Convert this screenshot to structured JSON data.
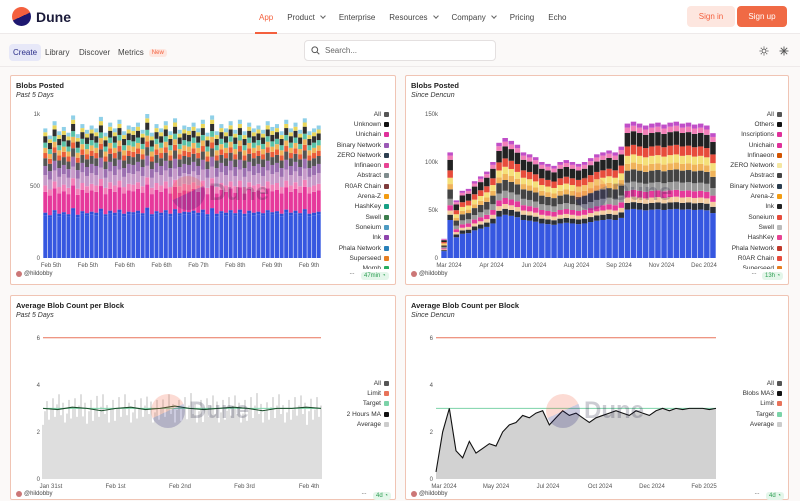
{
  "header": {
    "logo_text": "Dune",
    "nav": [
      {
        "label": "App",
        "active": true,
        "dropdown": false
      },
      {
        "label": "Product",
        "dropdown": true
      },
      {
        "label": "Enterprise",
        "dropdown": false
      },
      {
        "label": "Resources",
        "dropdown": true
      },
      {
        "label": "Company",
        "dropdown": true
      },
      {
        "label": "Pricing",
        "dropdown": false
      },
      {
        "label": "Echo",
        "dropdown": false
      }
    ],
    "signin_label": "Sign in",
    "signup_label": "Sign up"
  },
  "subnav": {
    "items": [
      "Create",
      "Library",
      "Discover",
      "Metrics"
    ],
    "new_badge": "New",
    "search_placeholder": "Search..."
  },
  "colors": {
    "accent": "#f4603e",
    "border": "#f0c4b4"
  },
  "watermark": "Dune",
  "cards": [
    {
      "title": "Blobs Posted",
      "subtitle": "Past 5 Days",
      "author": "@hildobby",
      "freshness": "47min",
      "y_ticks": [
        "1k",
        "500",
        "0"
      ],
      "x_ticks": [
        "Feb 5th",
        "Feb 5th",
        "Feb 6th",
        "Feb 6th",
        "Feb 7th",
        "Feb 8th",
        "Feb 9th",
        "Feb 9th"
      ],
      "legend": [
        {
          "label": "All",
          "color": "#555555"
        },
        {
          "label": "Unknown",
          "color": "#111111"
        },
        {
          "label": "Unichain",
          "color": "#e0309a"
        },
        {
          "label": "Binary Network",
          "color": "#9b59b6"
        },
        {
          "label": "ZERO Network",
          "color": "#2c3e50"
        },
        {
          "label": "Infinaeon",
          "color": "#e84393"
        },
        {
          "label": "Abstract",
          "color": "#7f8c8d"
        },
        {
          "label": "R0AR Chain",
          "color": "#7f3b3b"
        },
        {
          "label": "Arena-Z",
          "color": "#f39c12"
        },
        {
          "label": "HashKey",
          "color": "#16a085"
        },
        {
          "label": "Swell",
          "color": "#3b7d4c"
        },
        {
          "label": "Soneium",
          "color": "#4d9ac2"
        },
        {
          "label": "Ink",
          "color": "#8e44ad"
        },
        {
          "label": "Phala Network",
          "color": "#2980b9"
        },
        {
          "label": "Superseed",
          "color": "#e67e22"
        },
        {
          "label": "Morph",
          "color": "#27ae60"
        }
      ]
    },
    {
      "title": "Blobs Posted",
      "subtitle": "Since Dencun",
      "author": "@hildobby",
      "freshness": "13h",
      "y_ticks": [
        "150k",
        "100k",
        "50k",
        "0"
      ],
      "x_ticks": [
        "Mar 2024",
        "Apr 2024",
        "Jun 2024",
        "Aug 2024",
        "Sep 2024",
        "Nov 2024",
        "Dec 2024"
      ],
      "legend": [
        {
          "label": "All",
          "color": "#555555"
        },
        {
          "label": "Others",
          "color": "#111111"
        },
        {
          "label": "Inscriptions",
          "color": "#e0309a"
        },
        {
          "label": "Unichain",
          "color": "#e0309a"
        },
        {
          "label": "Infinaeon",
          "color": "#d35400"
        },
        {
          "label": "ZERO Network",
          "color": "#f5e6a0"
        },
        {
          "label": "Abstract",
          "color": "#444444"
        },
        {
          "label": "Binary Network",
          "color": "#2c3e50"
        },
        {
          "label": "Arena-Z",
          "color": "#f39c12"
        },
        {
          "label": "Ink",
          "color": "#222222"
        },
        {
          "label": "Soneium",
          "color": "#e74c3c"
        },
        {
          "label": "Swell",
          "color": "#bbbbbb"
        },
        {
          "label": "HashKey",
          "color": "#e84393"
        },
        {
          "label": "Phala Network",
          "color": "#c0392b"
        },
        {
          "label": "R0AR Chain",
          "color": "#e74c3c"
        },
        {
          "label": "Superseed",
          "color": "#e67e22"
        }
      ]
    },
    {
      "title": "Average Blob Count per Block",
      "subtitle": "Past 5 Days",
      "author": "@hildobby",
      "freshness": "4d",
      "y_ticks": [
        "6",
        "4",
        "2",
        "0"
      ],
      "x_ticks": [
        "Jan 31st",
        "Feb 1st",
        "Feb 2nd",
        "Feb 3rd",
        "Feb 4th"
      ],
      "legend": [
        {
          "label": "All",
          "color": "#555555"
        },
        {
          "label": "Limit",
          "color": "#e8735a"
        },
        {
          "label": "Target",
          "color": "#7bd3a8"
        },
        {
          "label": "2 Hours MA",
          "color": "#111111"
        },
        {
          "label": "Average",
          "color": "#cccccc"
        }
      ]
    },
    {
      "title": "Average Blob Count per Block",
      "subtitle": "Since Dencun",
      "author": "@hildobby",
      "freshness": "4d",
      "y_ticks": [
        "6",
        "4",
        "2",
        "0"
      ],
      "x_ticks": [
        "Mar 2024",
        "May 2024",
        "Jul 2024",
        "Oct 2024",
        "Dec 2024",
        "Feb 2025"
      ],
      "legend": [
        {
          "label": "All",
          "color": "#555555"
        },
        {
          "label": "Blobs MA3",
          "color": "#111111"
        },
        {
          "label": "Limit",
          "color": "#e8735a"
        },
        {
          "label": "Target",
          "color": "#7bd3a8"
        },
        {
          "label": "Average",
          "color": "#cccccc"
        }
      ]
    }
  ],
  "chart_data": [
    {
      "type": "bar",
      "title": "Blobs Posted",
      "subtitle": "Past 5 Days",
      "stacked": true,
      "ylim": [
        0,
        1000
      ],
      "y_ticks": [
        0,
        500,
        1000
      ],
      "x_ticks": [
        "Feb 5th",
        "Feb 5th",
        "Feb 6th",
        "Feb 6th",
        "Feb 7th",
        "Feb 8th",
        "Feb 9th",
        "Feb 9th"
      ],
      "bar_count": 60,
      "totals": [
        900,
        850,
        950,
        880,
        910,
        870,
        990,
        860,
        930,
        890,
        920,
        900,
        980,
        870,
        940,
        900,
        960,
        880,
        920,
        910,
        940,
        890,
        1000,
        870,
        930,
        900,
        950,
        880,
        970,
        890,
        920,
        910,
        940,
        900,
        960,
        870,
        990,
        880,
        930,
        900,
        950,
        890,
        960,
        880,
        940,
        900,
        920,
        890,
        950,
        910,
        930,
        880,
        960,
        900,
        940,
        890,
        970,
        880,
        900,
        920
      ],
      "segment_shares": {
        "Phala Network": 0.35,
        "Unichain": 0.21,
        "Binary Network": 0.12,
        "Swell": 0.03,
        "Abstract": 0.1,
        "R0AR Chain": 0.04,
        "Arena-Z": 0.03,
        "Soneium": 0.05,
        "Unknown": 0.04,
        "HashKey": 0.03
      }
    },
    {
      "type": "bar",
      "title": "Blobs Posted",
      "subtitle": "Since Dencun",
      "stacked": true,
      "ylim": [
        0,
        150000
      ],
      "y_ticks": [
        0,
        50000,
        100000,
        150000
      ],
      "x_ticks": [
        "Mar 2024",
        "Apr 2024",
        "Jun 2024",
        "Aug 2024",
        "Sep 2024",
        "Nov 2024",
        "Dec 2024"
      ],
      "bar_count": 45,
      "totals": [
        20000,
        110000,
        60000,
        70000,
        72000,
        80000,
        85000,
        90000,
        100000,
        120000,
        125000,
        122000,
        118000,
        110000,
        108000,
        105000,
        100000,
        98000,
        96000,
        100000,
        102000,
        100000,
        98000,
        100000,
        104000,
        108000,
        110000,
        112000,
        110000,
        116000,
        140000,
        142000,
        140000,
        138000,
        140000,
        141000,
        139000,
        141000,
        142000,
        140000,
        141000,
        139000,
        140000,
        138000,
        130000
      ],
      "segment_shares": {
        "Phala Network": 0.38,
        "Ink": 0.1,
        "Inscriptions": 0.12,
        "Abstract": 0.1,
        "Swell": 0.08,
        "ZERO Network": 0.06,
        "Unichain": 0.06,
        "Soneium": 0.04,
        "Arena-Z": 0.03,
        "Others": 0.03
      }
    },
    {
      "type": "line",
      "title": "Average Blob Count per Block",
      "subtitle": "Past 5 Days",
      "ylim": [
        0,
        6.5
      ],
      "y_ticks": [
        0,
        2,
        4,
        6
      ],
      "x_ticks": [
        "Jan 31st",
        "Feb 1st",
        "Feb 2nd",
        "Feb 3rd",
        "Feb 4th"
      ],
      "series": [
        {
          "name": "Limit",
          "values": [
            6,
            6
          ]
        },
        {
          "name": "Target",
          "values": [
            3,
            3
          ]
        },
        {
          "name": "2 Hours MA",
          "values": [
            3.0,
            2.95,
            3.05,
            3.0,
            2.9,
            3.0,
            3.05,
            2.95,
            3.0,
            3.1,
            3.0,
            2.95,
            3.0,
            3.05,
            3.0,
            2.9,
            3.0,
            3.0,
            3.05,
            3.0
          ]
        },
        {
          "name": "Average",
          "values": [
            2.9,
            3.0,
            2.95,
            3.0,
            3.0,
            2.95,
            3.0,
            3.05,
            3.0,
            2.95,
            3.0,
            3.0,
            2.9,
            3.0,
            3.05,
            3.0,
            2.95,
            3.0,
            3.0,
            3.0
          ]
        }
      ]
    },
    {
      "type": "area",
      "title": "Average Blob Count per Block",
      "subtitle": "Since Dencun",
      "ylim": [
        0,
        6.5
      ],
      "y_ticks": [
        0,
        2,
        4,
        6
      ],
      "x_ticks": [
        "Mar 2024",
        "May 2024",
        "Jul 2024",
        "Oct 2024",
        "Dec 2024",
        "Feb 2025"
      ],
      "series": [
        {
          "name": "Limit",
          "values": [
            6,
            6
          ]
        },
        {
          "name": "Target",
          "values": [
            3,
            3
          ]
        },
        {
          "name": "Blobs MA3",
          "values": [
            0.3,
            2.0,
            3.0,
            1.2,
            0.9,
            1.6,
            1.1,
            1.3,
            1.5,
            1.4,
            2.0,
            2.3,
            2.4,
            2.7,
            2.6,
            2.8,
            2.9,
            2.3,
            2.6,
            2.9,
            2.7,
            2.8,
            2.6,
            2.4,
            2.6,
            2.7,
            2.8,
            2.9,
            2.8,
            2.7,
            2.9,
            2.8,
            2.7,
            2.9,
            3.0,
            2.9,
            3.0,
            2.95,
            3.0,
            3.0,
            3.0,
            2.95,
            3.0
          ]
        }
      ]
    }
  ]
}
